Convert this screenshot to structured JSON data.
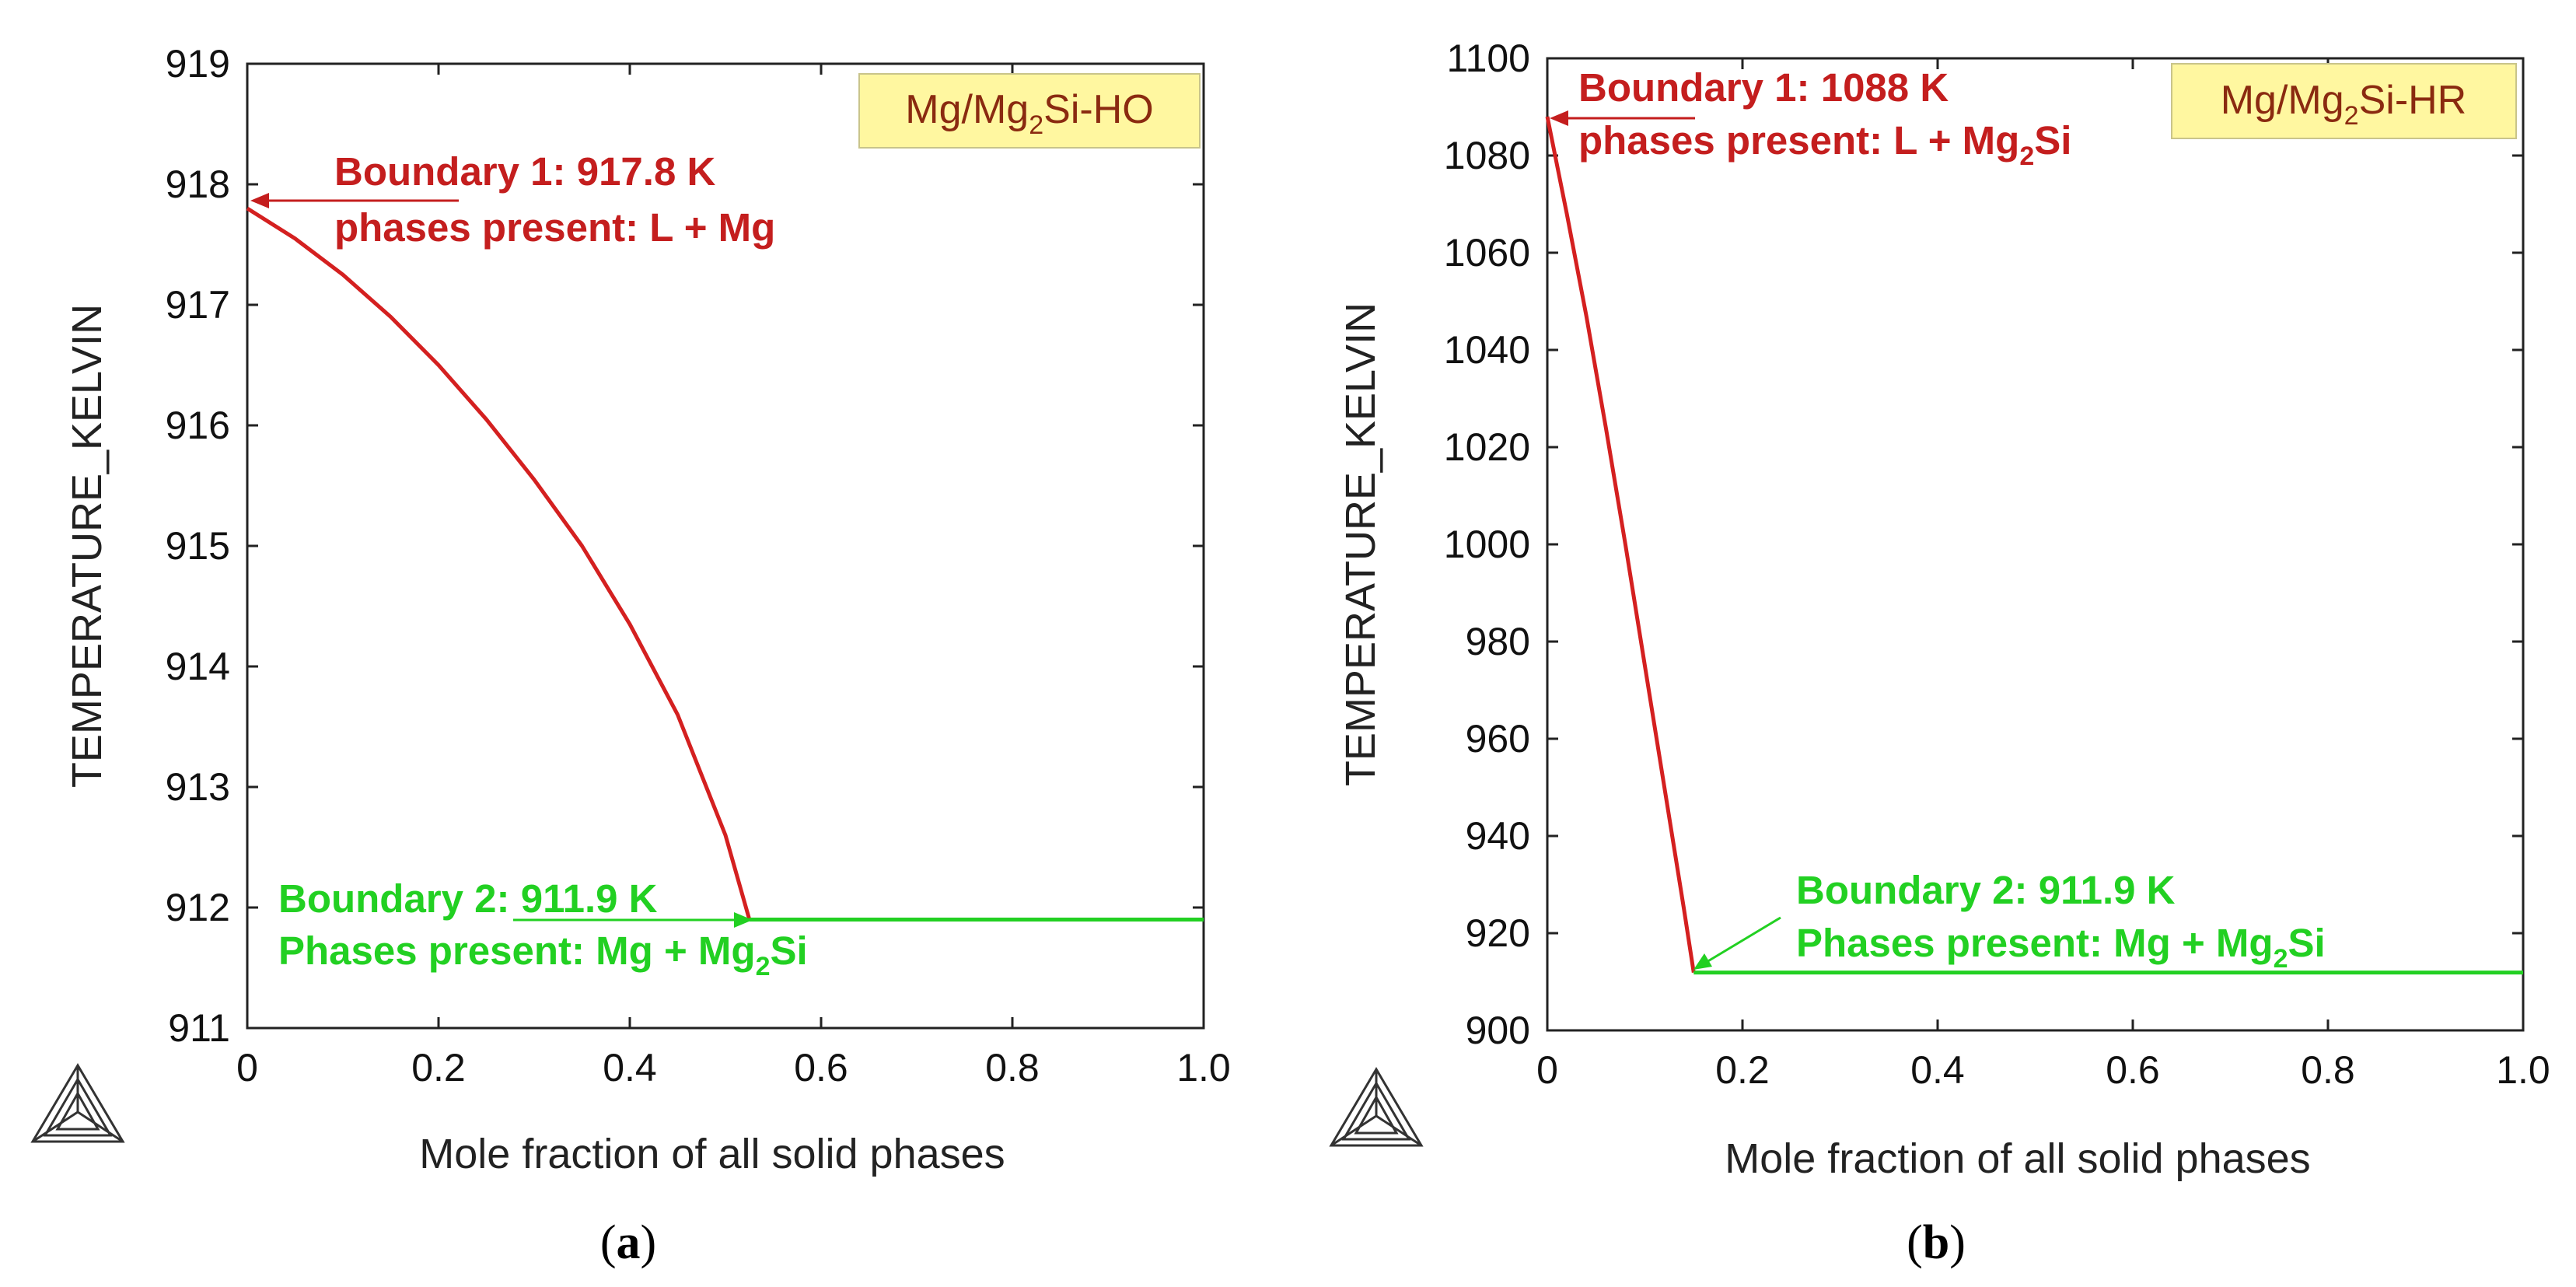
{
  "chart_data": [
    {
      "type": "line",
      "panel": "(a)",
      "panel_paren_open": "(",
      "panel_letter": "a",
      "panel_paren_close": ")",
      "label": {
        "pre": "Mg/Mg",
        "sub": "2",
        "post": "Si-HO"
      },
      "xlabel": "Mole fraction of all solid phases",
      "ylabel": "TEMPERATURE_KELVIN",
      "xlim": [
        0,
        1.0
      ],
      "ylim": [
        911,
        919
      ],
      "xticks": [
        "0",
        "0.2",
        "0.4",
        "0.6",
        "0.8",
        "1.0"
      ],
      "xtick_values": [
        0,
        0.2,
        0.4,
        0.6,
        0.8,
        1.0
      ],
      "yticks": [
        "911",
        "912",
        "913",
        "914",
        "915",
        "916",
        "917",
        "918",
        "919"
      ],
      "ytick_values": [
        911,
        912,
        913,
        914,
        915,
        916,
        917,
        918,
        919
      ],
      "series": [
        {
          "name": "L + Mg",
          "color": "#d42020",
          "x": [
            0,
            0.05,
            0.1,
            0.15,
            0.2,
            0.25,
            0.3,
            0.35,
            0.4,
            0.45,
            0.5,
            0.525
          ],
          "y": [
            917.8,
            917.55,
            917.25,
            916.9,
            916.5,
            916.05,
            915.55,
            915.0,
            914.35,
            913.6,
            912.6,
            911.9
          ]
        },
        {
          "name": "Mg + Mg2Si",
          "color": "#22d022",
          "x": [
            0.525,
            1.0
          ],
          "y": [
            911.9,
            911.9
          ]
        }
      ],
      "annotations": [
        {
          "color": "#c41e1e",
          "line1": "Boundary 1: 917.8 K",
          "line2": {
            "pre": "phases present: L + Mg",
            "sub": "",
            "post": ""
          },
          "target": [
            0,
            917.8
          ]
        },
        {
          "color": "#22d022",
          "line1": "Boundary 2: 911.9 K",
          "line2": {
            "pre": "Phases present: Mg + Mg",
            "sub": "2",
            "post": "Si"
          },
          "target": [
            0.525,
            911.9
          ]
        }
      ]
    },
    {
      "type": "line",
      "panel": "(b)",
      "panel_paren_open": "(",
      "panel_letter": "b",
      "panel_paren_close": ")",
      "label": {
        "pre": "Mg/Mg",
        "sub": "2",
        "post": "Si-HR"
      },
      "xlabel": "Mole fraction of all solid phases",
      "ylabel": "TEMPERATURE_KELVIN",
      "xlim": [
        0,
        1.0
      ],
      "ylim": [
        900,
        1100
      ],
      "xticks": [
        "0",
        "0.2",
        "0.4",
        "0.6",
        "0.8",
        "1.0"
      ],
      "xtick_values": [
        0,
        0.2,
        0.4,
        0.6,
        0.8,
        1.0
      ],
      "yticks": [
        "900",
        "920",
        "940",
        "960",
        "980",
        "1000",
        "1020",
        "1040",
        "1060",
        "1080",
        "1100"
      ],
      "ytick_values": [
        900,
        920,
        940,
        960,
        980,
        1000,
        1020,
        1040,
        1060,
        1080,
        1100
      ],
      "series": [
        {
          "name": "L + Mg2Si",
          "color": "#d42020",
          "x": [
            0,
            0.02,
            0.04,
            0.06,
            0.08,
            0.1,
            0.12,
            0.14,
            0.15
          ],
          "y": [
            1088,
            1068,
            1047,
            1024,
            1000,
            975,
            950,
            925,
            911.9
          ]
        },
        {
          "name": "Mg + Mg2Si",
          "color": "#22d022",
          "x": [
            0.15,
            1.0
          ],
          "y": [
            911.9,
            911.9
          ]
        }
      ],
      "annotations": [
        {
          "color": "#c41e1e",
          "line1": "Boundary 1: 1088 K",
          "line2": {
            "pre": "phases present: L + Mg",
            "sub": "2",
            "post": "Si"
          },
          "target": [
            0,
            1088
          ]
        },
        {
          "color": "#22d022",
          "line1": "Boundary 2: 911.9 K",
          "line2": {
            "pre": "Phases present: Mg + Mg",
            "sub": "2",
            "post": "Si"
          },
          "target": [
            0.15,
            911.9
          ]
        }
      ]
    }
  ],
  "colors": {
    "axis": "#222222",
    "label_box": "#fff7a0",
    "label_box_border": "#c9c48a",
    "label_text": "#8a2a10"
  }
}
